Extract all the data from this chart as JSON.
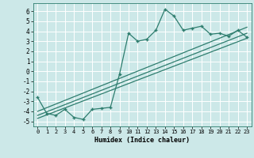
{
  "xlabel": "Humidex (Indice chaleur)",
  "ylabel": "",
  "xlim": [
    -0.5,
    23.5
  ],
  "ylim": [
    -5.5,
    6.8
  ],
  "xticks": [
    0,
    1,
    2,
    3,
    4,
    5,
    6,
    7,
    8,
    9,
    10,
    11,
    12,
    13,
    14,
    15,
    16,
    17,
    18,
    19,
    20,
    21,
    22,
    23
  ],
  "yticks": [
    -5,
    -4,
    -3,
    -2,
    -1,
    0,
    1,
    2,
    3,
    4,
    5,
    6
  ],
  "line_color": "#2e7d6e",
  "bg_color": "#cce8e8",
  "grid_color": "#b0d0d0",
  "jagged_x": [
    0,
    1,
    2,
    3,
    4,
    5,
    6,
    7,
    8,
    9,
    10,
    11,
    12,
    13,
    14,
    15,
    16,
    17,
    18,
    19,
    20,
    21,
    22,
    23
  ],
  "jagged_y": [
    -2.6,
    -4.2,
    -4.4,
    -3.8,
    -4.6,
    -4.8,
    -3.8,
    -3.7,
    -3.6,
    -0.3,
    3.8,
    3.0,
    3.2,
    4.1,
    6.2,
    5.5,
    4.1,
    4.3,
    4.5,
    3.7,
    3.8,
    3.5,
    4.1,
    3.4
  ],
  "line1_x": [
    0,
    23
  ],
  "line1_y": [
    -4.7,
    3.3
  ],
  "line2_x": [
    0,
    23
  ],
  "line2_y": [
    -4.4,
    3.8
  ],
  "line3_x": [
    0,
    23
  ],
  "line3_y": [
    -4.0,
    4.4
  ]
}
